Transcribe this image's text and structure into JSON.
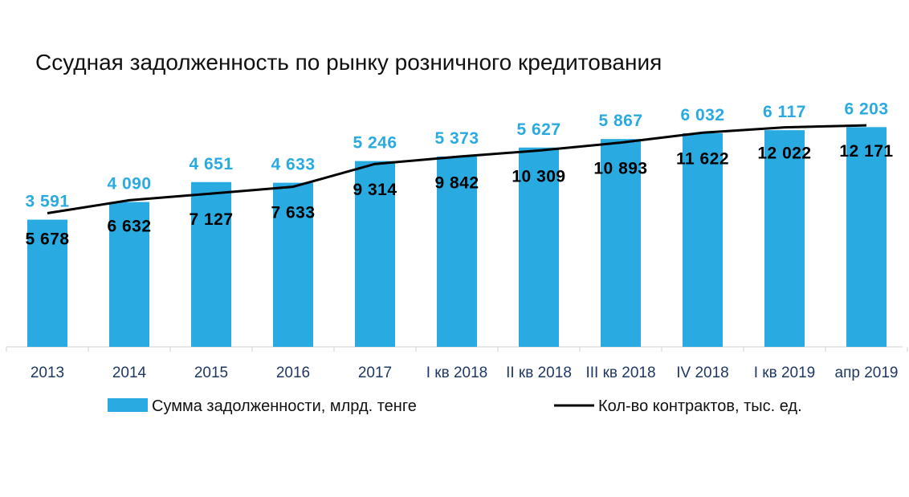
{
  "chart_data": {
    "type": "bar",
    "title": "Ссудная задолженность по рынку розничного кредитования",
    "categories": [
      "2013",
      "2014",
      "2015",
      "2016",
      "2017",
      "I кв 2018",
      "II кв 2018",
      "III кв 2018",
      "IV 2018",
      "I кв 2019",
      "апр 2019"
    ],
    "series": [
      {
        "name": "Сумма задолженности, млрд. тенге",
        "kind": "bar",
        "color": "#29abe2",
        "values": [
          3591,
          4090,
          4651,
          4633,
          5246,
          5373,
          5627,
          5867,
          6032,
          6117,
          6203
        ],
        "labels": [
          "3 591",
          "4 090",
          "4 651",
          "4 633",
          "5 246",
          "5 373",
          "5 627",
          "5 867",
          "6 032",
          "6 117",
          "6 203"
        ]
      },
      {
        "name": "Кол-во контрактов, тыс. ед.",
        "kind": "line",
        "color": "#000000",
        "values": [
          5678,
          6632,
          7127,
          7633,
          9314,
          9842,
          10309,
          10893,
          11622,
          12022,
          12171
        ],
        "labels": [
          "5 678",
          "6 632",
          "7 127",
          "7 633",
          "9 314",
          "9 842",
          "10 309",
          "10 893",
          "11 622",
          "12 022",
          "12 171"
        ]
      }
    ],
    "bar_axis_range": [
      0,
      6800
    ],
    "line_axis_range": [
      -4200,
      13600
    ],
    "legend_position": "bottom",
    "grid": false
  }
}
